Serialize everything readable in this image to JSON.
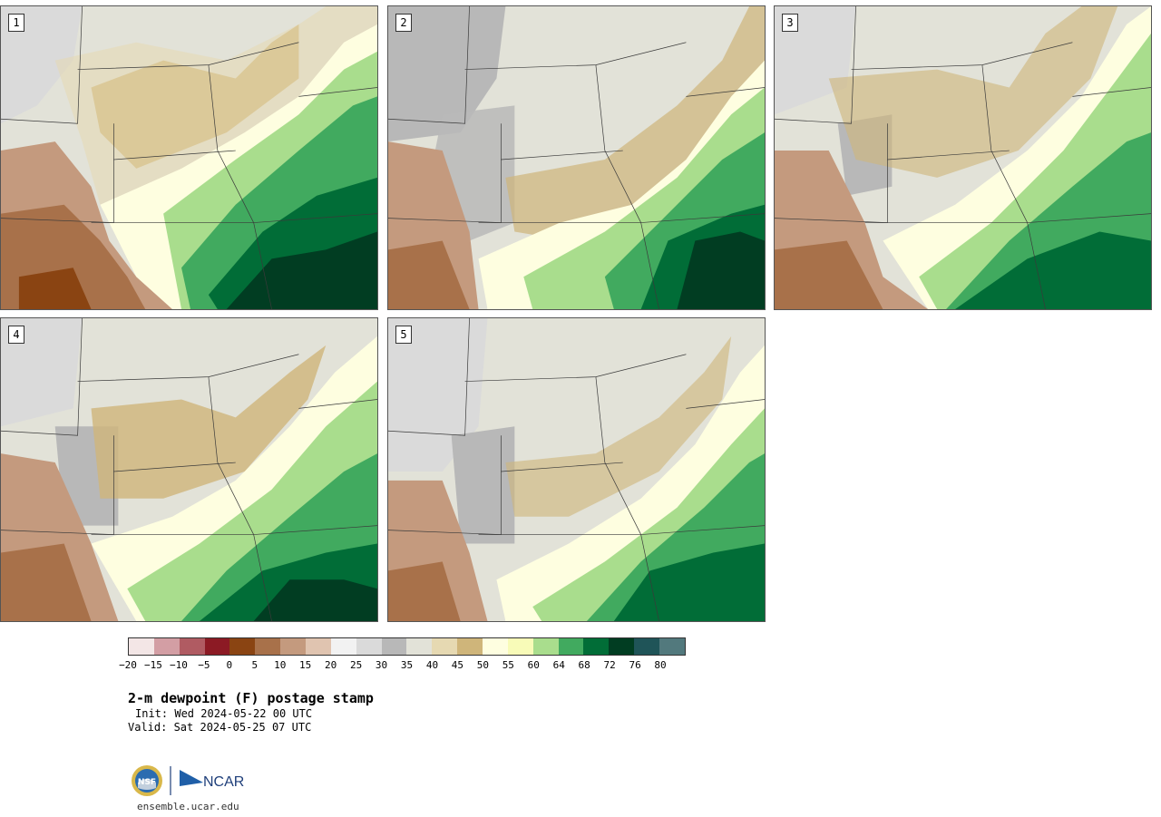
{
  "title": "2-m dewpoint (F) postage stamp",
  "init": "Init: Wed 2024-05-22 00 UTC",
  "valid": "Valid: Sat 2024-05-25 07 UTC",
  "site": "ensemble.ucar.edu",
  "logos": {
    "nsf": "NSF",
    "ncar": "NCAR"
  },
  "panels": [
    {
      "id": "1"
    },
    {
      "id": "2"
    },
    {
      "id": "3"
    },
    {
      "id": "4"
    },
    {
      "id": "5"
    }
  ],
  "colorbar": {
    "colors": [
      "#f3e6e6",
      "#d39ea4",
      "#b05b62",
      "#8c1a24",
      "#8a4412",
      "#a8714a",
      "#c49a7e",
      "#e0c4b0",
      "#f2f2f2",
      "#dadada",
      "#b8b8b8",
      "#e2e2d8",
      "#e6d9b2",
      "#cfb57a",
      "#fefee0",
      "#f8fbb8",
      "#a9dd8d",
      "#41aa5f",
      "#016d37",
      "#013d22",
      "#1f5458",
      "#52797d"
    ],
    "ticks": [
      "−20",
      "−15",
      "−10",
      "−5",
      "0",
      "5",
      "10",
      "15",
      "20",
      "25",
      "30",
      "35",
      "40",
      "45",
      "50",
      "55",
      "60",
      "64",
      "68",
      "72",
      "76",
      "80"
    ]
  }
}
